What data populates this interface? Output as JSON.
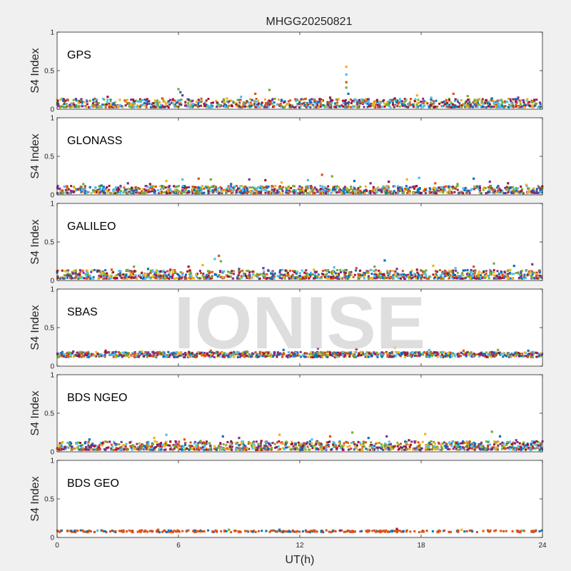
{
  "watermark": "IONISE",
  "colors": [
    "#0072BD",
    "#D95319",
    "#EDB120",
    "#7E2F8E",
    "#77AC30",
    "#4DBEEE",
    "#A2142F"
  ],
  "chart_data": {
    "type": "scatter",
    "title": "MHGG20250821",
    "xlabel": "UT(h)",
    "ylabel": "S4 Index",
    "xlim": [
      0,
      24
    ],
    "ylim": [
      0,
      1
    ],
    "xticks": [
      "0",
      "6",
      "12",
      "18",
      "24"
    ],
    "yticks": [
      "0",
      "0.5",
      "1"
    ],
    "panels": [
      {
        "label": "GPS",
        "baseline": 0.07,
        "points": [
          {
            "x": 0.3,
            "y": 0.11
          },
          {
            "x": 1.2,
            "y": 0.13
          },
          {
            "x": 2.5,
            "y": 0.16
          },
          {
            "x": 3.1,
            "y": 0.12
          },
          {
            "x": 4.0,
            "y": 0.1
          },
          {
            "x": 5.2,
            "y": 0.14
          },
          {
            "x": 6.0,
            "y": 0.26
          },
          {
            "x": 6.1,
            "y": 0.22
          },
          {
            "x": 6.2,
            "y": 0.18
          },
          {
            "x": 7.0,
            "y": 0.12
          },
          {
            "x": 8.4,
            "y": 0.14
          },
          {
            "x": 9.1,
            "y": 0.16
          },
          {
            "x": 9.8,
            "y": 0.2
          },
          {
            "x": 10.5,
            "y": 0.25
          },
          {
            "x": 11.1,
            "y": 0.12
          },
          {
            "x": 12.6,
            "y": 0.13
          },
          {
            "x": 13.5,
            "y": 0.15
          },
          {
            "x": 14.3,
            "y": 0.55
          },
          {
            "x": 14.3,
            "y": 0.45
          },
          {
            "x": 14.3,
            "y": 0.35
          },
          {
            "x": 14.3,
            "y": 0.28
          },
          {
            "x": 14.4,
            "y": 0.2
          },
          {
            "x": 15.4,
            "y": 0.13
          },
          {
            "x": 16.7,
            "y": 0.14
          },
          {
            "x": 17.8,
            "y": 0.18
          },
          {
            "x": 18.5,
            "y": 0.15
          },
          {
            "x": 19.6,
            "y": 0.2
          },
          {
            "x": 20.3,
            "y": 0.17
          },
          {
            "x": 21.5,
            "y": 0.14
          },
          {
            "x": 22.8,
            "y": 0.15
          },
          {
            "x": 23.6,
            "y": 0.12
          }
        ]
      },
      {
        "label": "GLONASS",
        "baseline": 0.06,
        "points": [
          {
            "x": 0.5,
            "y": 0.11
          },
          {
            "x": 1.3,
            "y": 0.14
          },
          {
            "x": 2.2,
            "y": 0.12
          },
          {
            "x": 3.5,
            "y": 0.15
          },
          {
            "x": 4.6,
            "y": 0.14
          },
          {
            "x": 5.4,
            "y": 0.18
          },
          {
            "x": 6.2,
            "y": 0.2
          },
          {
            "x": 7.0,
            "y": 0.21
          },
          {
            "x": 7.6,
            "y": 0.2
          },
          {
            "x": 8.6,
            "y": 0.14
          },
          {
            "x": 9.5,
            "y": 0.2
          },
          {
            "x": 10.3,
            "y": 0.19
          },
          {
            "x": 11.1,
            "y": 0.16
          },
          {
            "x": 12.4,
            "y": 0.19
          },
          {
            "x": 13.1,
            "y": 0.26
          },
          {
            "x": 13.6,
            "y": 0.24
          },
          {
            "x": 14.7,
            "y": 0.18
          },
          {
            "x": 15.5,
            "y": 0.15
          },
          {
            "x": 16.4,
            "y": 0.17
          },
          {
            "x": 17.3,
            "y": 0.2
          },
          {
            "x": 17.9,
            "y": 0.22
          },
          {
            "x": 18.7,
            "y": 0.15
          },
          {
            "x": 19.8,
            "y": 0.14
          },
          {
            "x": 20.6,
            "y": 0.21
          },
          {
            "x": 21.4,
            "y": 0.17
          },
          {
            "x": 22.3,
            "y": 0.15
          },
          {
            "x": 23.2,
            "y": 0.13
          }
        ]
      },
      {
        "label": "GALILEO",
        "baseline": 0.07,
        "points": [
          {
            "x": 0.4,
            "y": 0.12
          },
          {
            "x": 1.5,
            "y": 0.1
          },
          {
            "x": 2.7,
            "y": 0.14
          },
          {
            "x": 3.8,
            "y": 0.18
          },
          {
            "x": 4.5,
            "y": 0.15
          },
          {
            "x": 5.6,
            "y": 0.14
          },
          {
            "x": 6.5,
            "y": 0.18
          },
          {
            "x": 7.2,
            "y": 0.2
          },
          {
            "x": 7.8,
            "y": 0.28
          },
          {
            "x": 8.0,
            "y": 0.32
          },
          {
            "x": 8.1,
            "y": 0.25
          },
          {
            "x": 9.0,
            "y": 0.15
          },
          {
            "x": 10.2,
            "y": 0.16
          },
          {
            "x": 11.3,
            "y": 0.13
          },
          {
            "x": 12.7,
            "y": 0.14
          },
          {
            "x": 13.7,
            "y": 0.17
          },
          {
            "x": 14.8,
            "y": 0.16
          },
          {
            "x": 15.7,
            "y": 0.18
          },
          {
            "x": 16.2,
            "y": 0.26
          },
          {
            "x": 16.8,
            "y": 0.15
          },
          {
            "x": 17.8,
            "y": 0.14
          },
          {
            "x": 18.6,
            "y": 0.19
          },
          {
            "x": 19.7,
            "y": 0.16
          },
          {
            "x": 20.6,
            "y": 0.18
          },
          {
            "x": 21.6,
            "y": 0.22
          },
          {
            "x": 22.6,
            "y": 0.19
          },
          {
            "x": 23.5,
            "y": 0.21
          }
        ]
      },
      {
        "label": "SBAS",
        "baseline": 0.15,
        "points": [
          {
            "x": 0.8,
            "y": 0.19
          },
          {
            "x": 2.4,
            "y": 0.2
          },
          {
            "x": 4.2,
            "y": 0.19
          },
          {
            "x": 5.9,
            "y": 0.18
          },
          {
            "x": 7.6,
            "y": 0.2
          },
          {
            "x": 9.4,
            "y": 0.19
          },
          {
            "x": 11.2,
            "y": 0.21
          },
          {
            "x": 12.9,
            "y": 0.23
          },
          {
            "x": 14.8,
            "y": 0.22
          },
          {
            "x": 16.7,
            "y": 0.24
          },
          {
            "x": 18.4,
            "y": 0.21
          },
          {
            "x": 20.1,
            "y": 0.2
          },
          {
            "x": 21.8,
            "y": 0.21
          },
          {
            "x": 23.3,
            "y": 0.2
          }
        ]
      },
      {
        "label": "BDS NGEO",
        "baseline": 0.07,
        "points": [
          {
            "x": 0.6,
            "y": 0.1
          },
          {
            "x": 1.6,
            "y": 0.16
          },
          {
            "x": 2.6,
            "y": 0.13
          },
          {
            "x": 3.6,
            "y": 0.12
          },
          {
            "x": 4.8,
            "y": 0.18
          },
          {
            "x": 5.4,
            "y": 0.22
          },
          {
            "x": 6.3,
            "y": 0.16
          },
          {
            "x": 7.1,
            "y": 0.14
          },
          {
            "x": 8.2,
            "y": 0.2
          },
          {
            "x": 9.0,
            "y": 0.18
          },
          {
            "x": 10.1,
            "y": 0.14
          },
          {
            "x": 11.0,
            "y": 0.22
          },
          {
            "x": 12.6,
            "y": 0.16
          },
          {
            "x": 13.5,
            "y": 0.2
          },
          {
            "x": 14.6,
            "y": 0.25
          },
          {
            "x": 15.4,
            "y": 0.18
          },
          {
            "x": 16.3,
            "y": 0.2
          },
          {
            "x": 17.4,
            "y": 0.15
          },
          {
            "x": 18.2,
            "y": 0.23
          },
          {
            "x": 19.4,
            "y": 0.12
          },
          {
            "x": 20.4,
            "y": 0.13
          },
          {
            "x": 21.5,
            "y": 0.26
          },
          {
            "x": 21.9,
            "y": 0.2
          },
          {
            "x": 22.7,
            "y": 0.15
          },
          {
            "x": 23.6,
            "y": 0.12
          }
        ]
      },
      {
        "label": "BDS GEO",
        "baseline": 0.08,
        "points": [
          {
            "x": 2.0,
            "y": 0.09
          },
          {
            "x": 5.0,
            "y": 0.1
          },
          {
            "x": 8.5,
            "y": 0.1
          },
          {
            "x": 11.0,
            "y": 0.1
          },
          {
            "x": 14.0,
            "y": 0.09
          },
          {
            "x": 16.8,
            "y": 0.11
          },
          {
            "x": 20.0,
            "y": 0.1
          },
          {
            "x": 23.0,
            "y": 0.09
          }
        ]
      }
    ]
  }
}
